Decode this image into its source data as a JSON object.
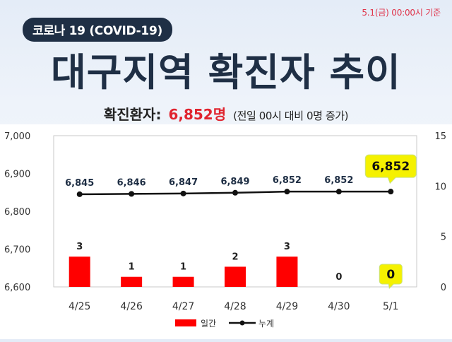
{
  "header": {
    "date": "5.1(금) 00:00시 기준",
    "badge": "코로나 19 (COVID-19)",
    "title": "대구지역 확진자 추이"
  },
  "summary": {
    "label": "확진환자:",
    "value": "6,852명",
    "note": "(전일 00시 대비 0명 증가)"
  },
  "chart_data": {
    "type": "bar",
    "categories": [
      "4/25",
      "4/26",
      "4/27",
      "4/28",
      "4/29",
      "4/30",
      "5/1"
    ],
    "series": [
      {
        "name": "일간",
        "type": "bar",
        "axis": "right",
        "values": [
          3,
          1,
          1,
          2,
          3,
          0,
          0
        ],
        "labels": [
          "3",
          "1",
          "1",
          "2",
          "3",
          "0",
          "0"
        ],
        "color": "#ff0000"
      },
      {
        "name": "누계",
        "type": "line",
        "axis": "left",
        "values": [
          6845,
          6846,
          6847,
          6849,
          6852,
          6852,
          6852
        ],
        "labels": [
          "6,845",
          "6,846",
          "6,847",
          "6,849",
          "6,852",
          "6,852",
          "6,852"
        ],
        "color": "#111111"
      }
    ],
    "y_left": {
      "min": 6600,
      "max": 7000,
      "ticks": [
        "7,000",
        "6,900",
        "6,800",
        "6,700",
        "6,600"
      ],
      "tick_values": [
        7000,
        6900,
        6800,
        6700,
        6600
      ]
    },
    "y_right": {
      "min": 0,
      "max": 15,
      "ticks": [
        "15",
        "10",
        "5",
        "0"
      ],
      "tick_values": [
        15,
        10,
        5,
        0
      ]
    },
    "highlight_color": "#f5f100",
    "grid": false,
    "legend_position": "bottom"
  }
}
